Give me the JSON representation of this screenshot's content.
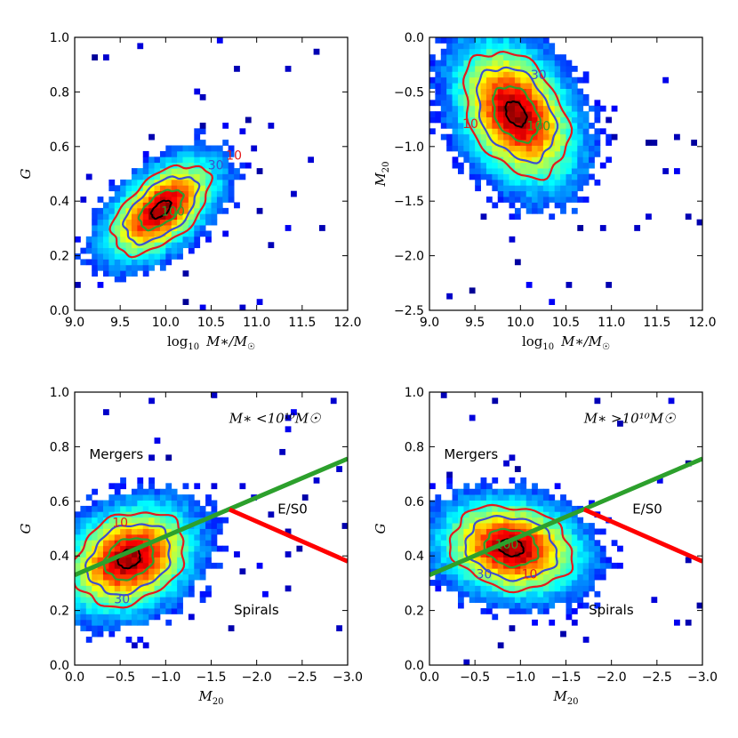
{
  "chart_data": [
    {
      "id": "tl",
      "type": "heatmap",
      "title": "",
      "xlabel": "log10 M*/M☉",
      "xlabel_main": "log",
      "xlabel_sub": "10",
      "xlabel_rest": "M∗/M",
      "ylabel": "G",
      "xlim": [
        9.0,
        12.0
      ],
      "ylim": [
        0.0,
        1.0
      ],
      "xticks": [
        9.0,
        9.5,
        10.0,
        10.5,
        11.0,
        11.5,
        12.0
      ],
      "xtick_labels": [
        "9.0",
        "9.5",
        "10.0",
        "10.5",
        "11.0",
        "11.5",
        "12.0"
      ],
      "yticks": [
        0.0,
        0.2,
        0.4,
        0.6,
        0.8,
        1.0
      ],
      "ytick_labels": [
        "0.0",
        "0.2",
        "0.4",
        "0.6",
        "0.8",
        "1.0"
      ],
      "density": {
        "center": [
          9.95,
          0.37
        ],
        "sigma": [
          0.28,
          0.085
        ],
        "cov": 0.55
      },
      "contour_labels": [
        {
          "text": "10",
          "x": 10.75,
          "y": 0.565,
          "color": "#e41a1c"
        },
        {
          "text": "30",
          "x": 10.55,
          "y": 0.53,
          "color": "#3b4fcf"
        },
        {
          "text": "100",
          "x": 10.08,
          "y": 0.36,
          "color": "#2ca02c"
        }
      ],
      "annotations": [],
      "lines": []
    },
    {
      "id": "tr",
      "type": "heatmap",
      "title": "",
      "xlabel": "log10 M*/M☉",
      "xlabel_main": "log",
      "xlabel_sub": "10",
      "xlabel_rest": "M∗/M",
      "ylabel": "M20",
      "xlim": [
        9.0,
        12.0
      ],
      "ylim": [
        -2.5,
        0.0
      ],
      "xticks": [
        9.0,
        9.5,
        10.0,
        10.5,
        11.0,
        11.5,
        12.0
      ],
      "xtick_labels": [
        "9.0",
        "9.5",
        "10.0",
        "10.5",
        "11.0",
        "11.5",
        "12.0"
      ],
      "yticks": [
        -2.5,
        -2.0,
        -1.5,
        -1.0,
        -0.5,
        0.0
      ],
      "ytick_labels": [
        "−2.5",
        "−2.0",
        "−1.5",
        "−1.0",
        "−0.5",
        "0.0"
      ],
      "density": {
        "center": [
          9.95,
          -0.7
        ],
        "sigma": [
          0.3,
          0.3
        ],
        "cov": -0.35
      },
      "contour_labels": [
        {
          "text": "30",
          "x": 10.2,
          "y": -0.35,
          "color": "#3b4fcf"
        },
        {
          "text": "10",
          "x": 9.45,
          "y": -0.8,
          "color": "#e41a1c"
        },
        {
          "text": "100",
          "x": 10.2,
          "y": -0.82,
          "color": "#2ca02c"
        }
      ],
      "annotations": [],
      "lines": []
    },
    {
      "id": "bl",
      "type": "heatmap",
      "title": "",
      "xlabel": "M20",
      "ylabel": "G",
      "xlim": [
        0.0,
        -3.0
      ],
      "ylim": [
        0.0,
        1.0
      ],
      "xticks": [
        0.0,
        -0.5,
        -1.0,
        -1.5,
        -2.0,
        -2.5,
        -3.0
      ],
      "xtick_labels": [
        "0.0",
        "−0.5",
        "−1.0",
        "−1.5",
        "−2.0",
        "−2.5",
        "−3.0"
      ],
      "yticks": [
        0.0,
        0.2,
        0.4,
        0.6,
        0.8,
        1.0
      ],
      "ytick_labels": [
        "0.0",
        "0.2",
        "0.4",
        "0.6",
        "0.8",
        "1.0"
      ],
      "density": {
        "center": [
          -0.6,
          0.39
        ],
        "sigma": [
          0.32,
          0.09
        ],
        "cov": -0.25
      },
      "contour_labels": [
        {
          "text": "10",
          "x": -0.5,
          "y": 0.52,
          "color": "#e41a1c"
        },
        {
          "text": "30",
          "x": -0.52,
          "y": 0.24,
          "color": "#3b4fcf"
        }
      ],
      "annotations": [
        {
          "text": "M∗ <10¹⁰M☉",
          "x": -2.2,
          "y": 0.9,
          "style": "math"
        },
        {
          "text": "Mergers",
          "x": -0.16,
          "y": 0.77,
          "style": "plain"
        },
        {
          "text": "E/S0",
          "x": -2.23,
          "y": 0.57,
          "style": "plain"
        },
        {
          "text": "Spirals",
          "x": -1.75,
          "y": 0.2,
          "style": "plain"
        }
      ],
      "lines": [
        {
          "color": "#2ca02c",
          "x": [
            0.0,
            -3.0
          ],
          "y": [
            0.33,
            0.756
          ]
        },
        {
          "color": "#ff0000",
          "x": [
            -1.7,
            -3.0
          ],
          "y": [
            0.57,
            0.38
          ]
        }
      ]
    },
    {
      "id": "br",
      "type": "heatmap",
      "title": "",
      "xlabel": "M20",
      "ylabel": "G",
      "xlim": [
        0.0,
        -3.0
      ],
      "ylim": [
        0.0,
        1.0
      ],
      "xticks": [
        0.0,
        -0.5,
        -1.0,
        -1.5,
        -2.0,
        -2.5,
        -3.0
      ],
      "xtick_labels": [
        "0.0",
        "−0.5",
        "−1.0",
        "−1.5",
        "−2.0",
        "−2.5",
        "−3.0"
      ],
      "yticks": [
        0.0,
        0.2,
        0.4,
        0.6,
        0.8,
        1.0
      ],
      "ytick_labels": [
        "0.0",
        "0.2",
        "0.4",
        "0.6",
        "0.8",
        "1.0"
      ],
      "density": {
        "center": [
          -0.9,
          0.43
        ],
        "sigma": [
          0.35,
          0.08
        ],
        "cov": 0.15
      },
      "contour_labels": [
        {
          "text": "100",
          "x": -0.85,
          "y": 0.44,
          "color": "#2ca02c"
        },
        {
          "text": "30",
          "x": -0.6,
          "y": 0.33,
          "color": "#3b4fcf"
        },
        {
          "text": "10",
          "x": -1.1,
          "y": 0.33,
          "color": "#e41a1c"
        }
      ],
      "annotations": [
        {
          "text": "M∗ >10¹⁰M☉",
          "x": -2.2,
          "y": 0.9,
          "style": "math"
        },
        {
          "text": "Mergers",
          "x": -0.16,
          "y": 0.77,
          "style": "plain"
        },
        {
          "text": "E/S0",
          "x": -2.23,
          "y": 0.57,
          "style": "plain"
        },
        {
          "text": "Spirals",
          "x": -1.75,
          "y": 0.2,
          "style": "plain"
        }
      ],
      "lines": [
        {
          "color": "#2ca02c",
          "x": [
            0.0,
            -3.0
          ],
          "y": [
            0.33,
            0.756
          ]
        },
        {
          "color": "#ff0000",
          "x": [
            -1.7,
            -3.0
          ],
          "y": [
            0.57,
            0.38
          ]
        }
      ]
    }
  ]
}
